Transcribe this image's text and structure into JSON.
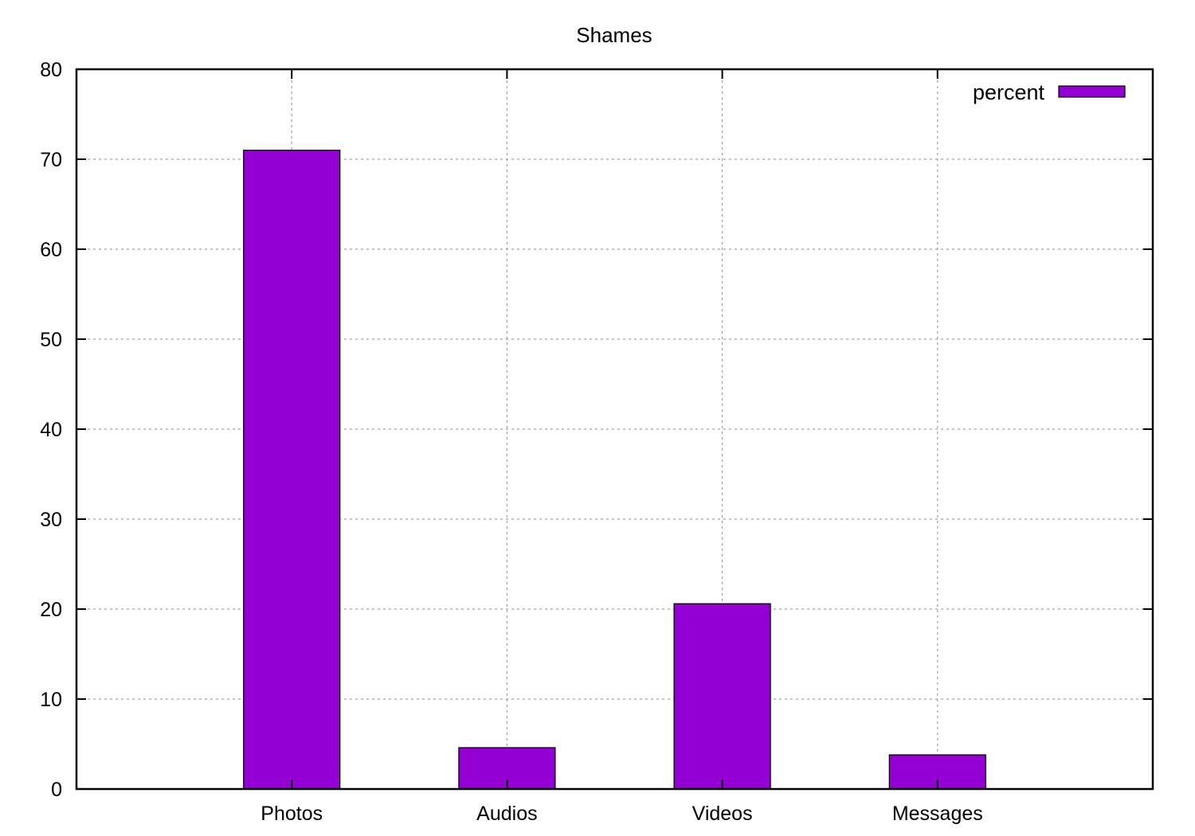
{
  "chart_data": {
    "type": "bar",
    "title": "Shames",
    "xlabel": "",
    "ylabel": "",
    "categories": [
      "Photos",
      "Audios",
      "Videos",
      "Messages"
    ],
    "series": [
      {
        "name": "percent",
        "values": [
          71.0,
          4.6,
          20.6,
          3.8
        ]
      }
    ],
    "ylim": [
      0,
      80
    ],
    "yticks": [
      0,
      10,
      20,
      30,
      40,
      50,
      60,
      70,
      80
    ],
    "grid": true,
    "legend_position": "top-right",
    "colors": {
      "bar": "#9400d3",
      "bar_edge": "#000000",
      "grid": "#a0a0a0"
    }
  }
}
